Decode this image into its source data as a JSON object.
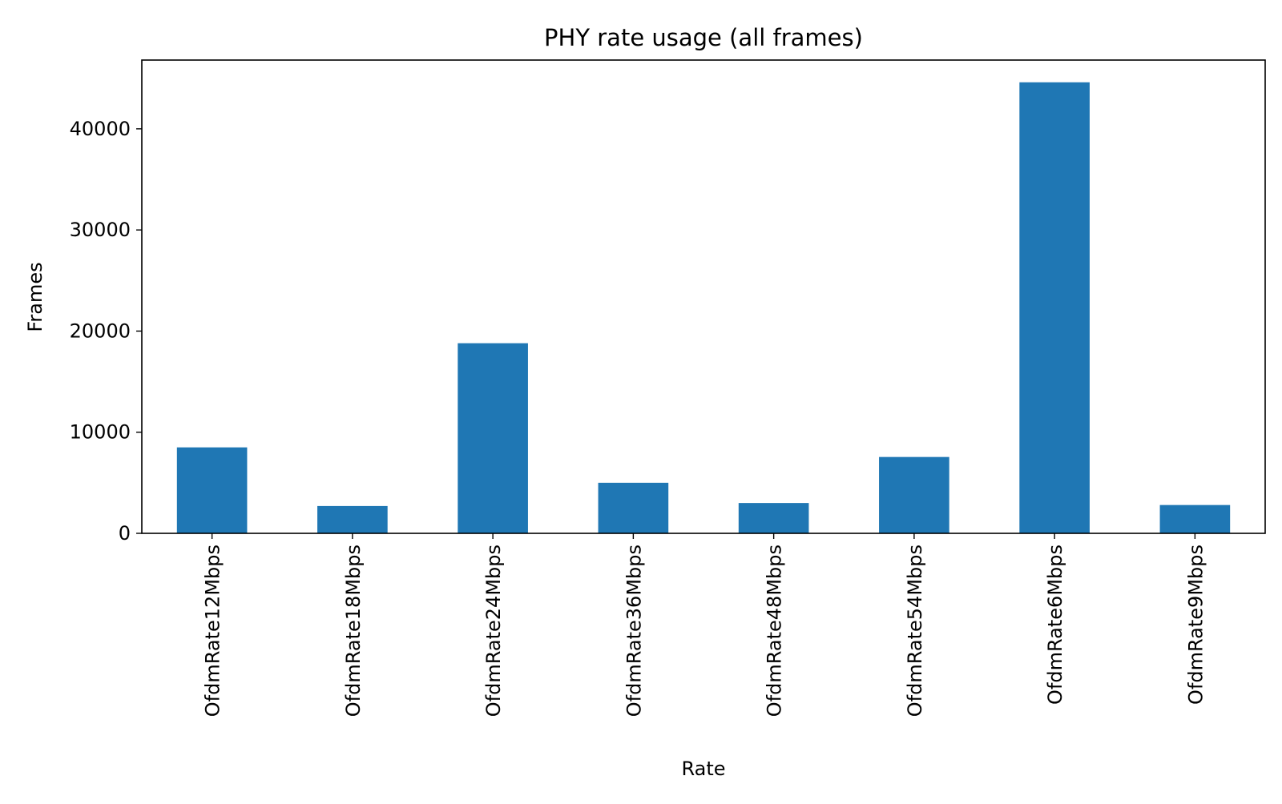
{
  "chart_data": {
    "type": "bar",
    "title": "PHY rate usage (all frames)",
    "xlabel": "Rate",
    "ylabel": "Frames",
    "categories": [
      "OfdmRate12Mbps",
      "OfdmRate18Mbps",
      "OfdmRate24Mbps",
      "OfdmRate36Mbps",
      "OfdmRate48Mbps",
      "OfdmRate54Mbps",
      "OfdmRate6Mbps",
      "OfdmRate9Mbps"
    ],
    "values": [
      8500,
      2700,
      18800,
      5000,
      3000,
      7550,
      44600,
      2800
    ],
    "ylim": [
      0,
      46800
    ],
    "yticks": [
      0,
      10000,
      20000,
      30000,
      40000
    ],
    "grid": false,
    "legend": "none",
    "bar_color": "#1f77b4"
  }
}
